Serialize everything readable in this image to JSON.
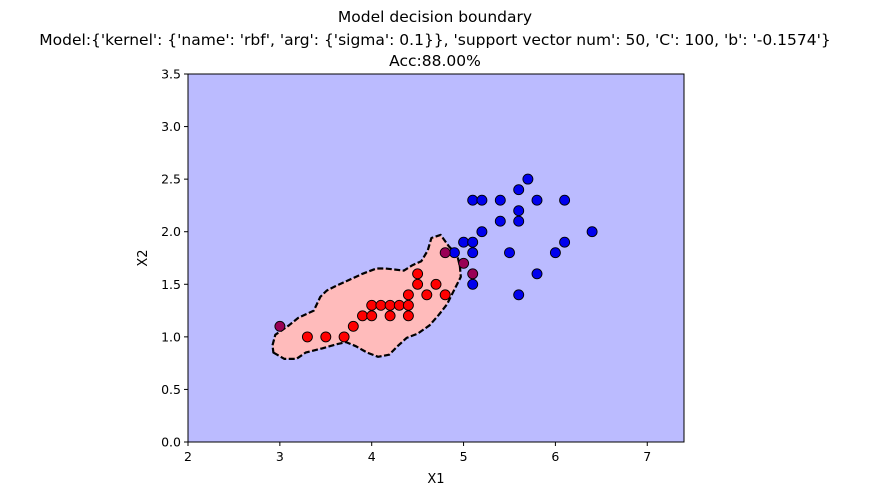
{
  "title_lines": [
    "Model decision boundary",
    "Model:{'kernel': {'name': 'rbf', 'arg': {'sigma': 0.1}}, 'support vector num': 50, 'C': 100, 'b': '-0.1574'}",
    "Acc:88.00%"
  ],
  "chart_data": {
    "type": "scatter",
    "title": "Model decision boundary",
    "xlabel": "X1",
    "ylabel": "X2",
    "xlim": [
      2,
      7.4
    ],
    "ylim": [
      0,
      3.5
    ],
    "xticks": [
      "2",
      "3",
      "4",
      "5",
      "6",
      "7"
    ],
    "yticks": [
      "0.0",
      "0.5",
      "1.0",
      "1.5",
      "2.0",
      "2.5",
      "3.0",
      "3.5"
    ],
    "grid": false,
    "colors": {
      "class_a_region": "#ffbbbb",
      "class_b_region": "#bbbbff",
      "class_a_points": "#ff0000",
      "class_b_points": "#0000ee",
      "misclassified_points": "#990055",
      "boundary": "#000000"
    },
    "decision_boundary": [
      [
        2.93,
        0.85
      ],
      [
        3.05,
        0.79
      ],
      [
        3.18,
        0.79
      ],
      [
        3.28,
        0.85
      ],
      [
        3.46,
        0.89
      ],
      [
        3.62,
        0.93
      ],
      [
        3.72,
        0.95
      ],
      [
        3.83,
        0.91
      ],
      [
        3.95,
        0.85
      ],
      [
        4.07,
        0.81
      ],
      [
        4.19,
        0.83
      ],
      [
        4.28,
        0.91
      ],
      [
        4.38,
        0.99
      ],
      [
        4.5,
        1.03
      ],
      [
        4.63,
        1.11
      ],
      [
        4.73,
        1.21
      ],
      [
        4.82,
        1.31
      ],
      [
        4.9,
        1.45
      ],
      [
        4.97,
        1.57
      ],
      [
        4.96,
        1.67
      ],
      [
        4.93,
        1.78
      ],
      [
        4.84,
        1.86
      ],
      [
        4.75,
        1.97
      ],
      [
        4.65,
        1.94
      ],
      [
        4.61,
        1.82
      ],
      [
        4.54,
        1.72
      ],
      [
        4.44,
        1.68
      ],
      [
        4.35,
        1.63
      ],
      [
        4.15,
        1.65
      ],
      [
        4.05,
        1.65
      ],
      [
        3.9,
        1.6
      ],
      [
        3.75,
        1.54
      ],
      [
        3.6,
        1.48
      ],
      [
        3.51,
        1.44
      ],
      [
        3.44,
        1.38
      ],
      [
        3.37,
        1.25
      ],
      [
        3.2,
        1.18
      ],
      [
        3.1,
        1.11
      ],
      [
        2.95,
        1.02
      ],
      [
        2.92,
        0.92
      ]
    ],
    "series": [
      {
        "class": "A",
        "points": [
          [
            3.3,
            1.0
          ],
          [
            3.5,
            1.0
          ],
          [
            3.7,
            1.0
          ],
          [
            3.8,
            1.1
          ],
          [
            3.9,
            1.2
          ],
          [
            4.0,
            1.2
          ],
          [
            4.0,
            1.3
          ],
          [
            4.1,
            1.3
          ],
          [
            4.2,
            1.2
          ],
          [
            4.2,
            1.3
          ],
          [
            4.3,
            1.3
          ],
          [
            4.4,
            1.2
          ],
          [
            4.4,
            1.3
          ],
          [
            4.4,
            1.4
          ],
          [
            4.5,
            1.5
          ],
          [
            4.5,
            1.6
          ],
          [
            4.6,
            1.4
          ],
          [
            4.7,
            1.5
          ],
          [
            4.8,
            1.4
          ]
        ]
      },
      {
        "class": "B",
        "points": [
          [
            4.9,
            1.8
          ],
          [
            5.0,
            1.9
          ],
          [
            5.1,
            1.5
          ],
          [
            5.1,
            1.8
          ],
          [
            5.1,
            1.9
          ],
          [
            5.1,
            2.3
          ],
          [
            5.2,
            2.0
          ],
          [
            5.2,
            2.3
          ],
          [
            5.4,
            2.1
          ],
          [
            5.4,
            2.3
          ],
          [
            5.5,
            1.8
          ],
          [
            5.6,
            1.4
          ],
          [
            5.6,
            2.1
          ],
          [
            5.6,
            2.2
          ],
          [
            5.6,
            2.4
          ],
          [
            5.7,
            2.5
          ],
          [
            5.8,
            1.6
          ],
          [
            5.8,
            2.3
          ],
          [
            6.0,
            1.8
          ],
          [
            6.1,
            1.9
          ],
          [
            6.1,
            2.3
          ],
          [
            6.4,
            2.0
          ]
        ]
      },
      {
        "class": "misclassified",
        "points": [
          [
            3.0,
            1.1
          ],
          [
            4.8,
            1.8
          ],
          [
            5.0,
            1.7
          ],
          [
            5.1,
            1.6
          ]
        ]
      }
    ]
  }
}
